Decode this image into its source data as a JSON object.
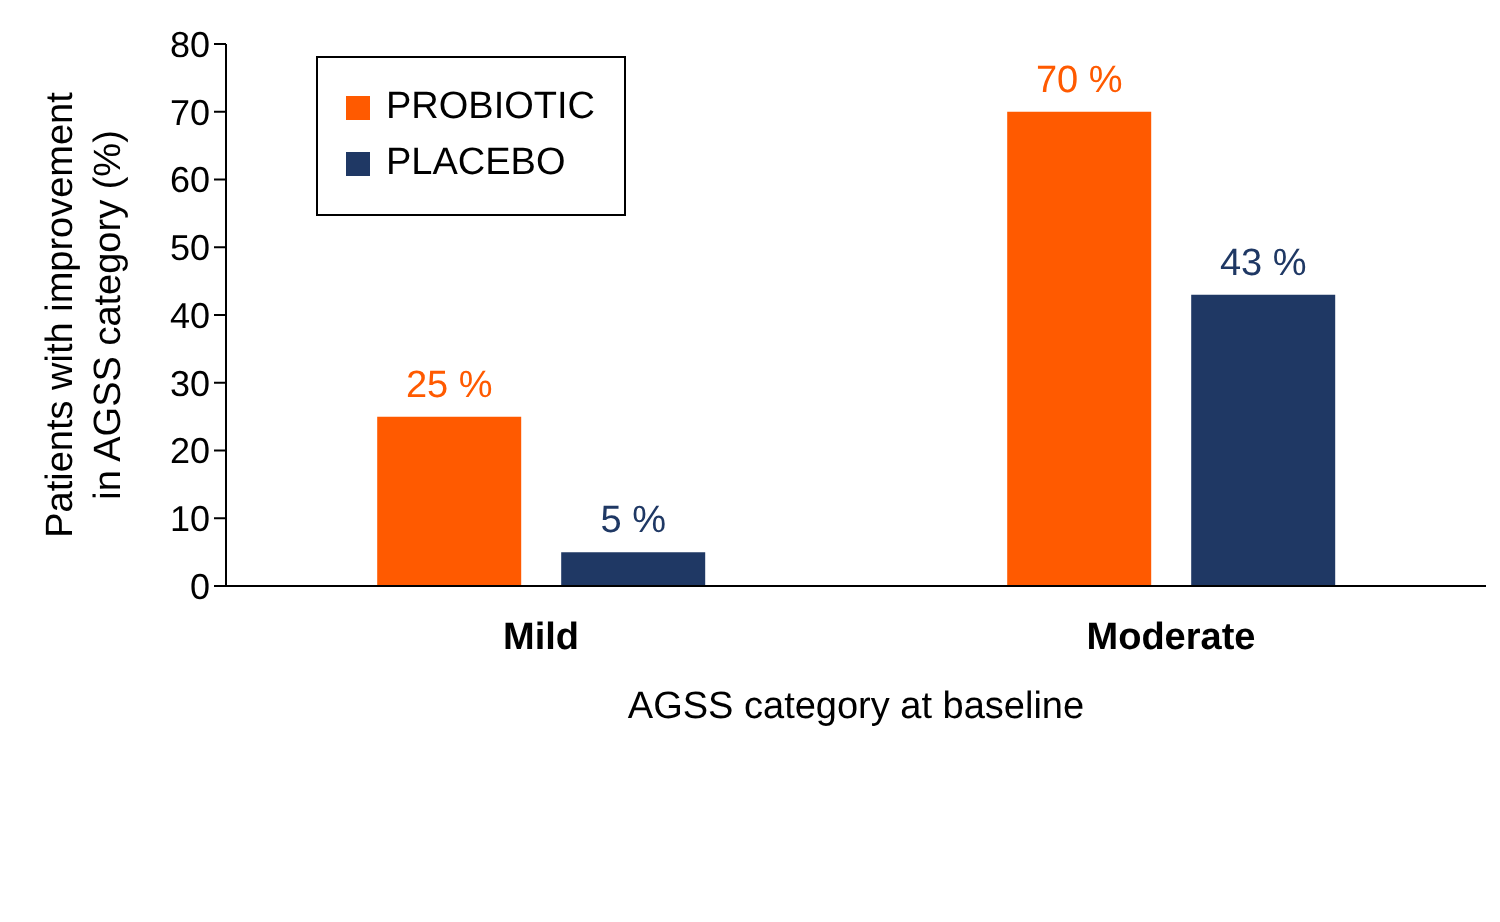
{
  "chart_data": {
    "type": "bar",
    "ylabel": "Patients with improvement in AGSS category (%)",
    "xlabel": "AGSS category at baseline",
    "categories": [
      "Mild",
      "Moderate"
    ],
    "series": [
      {
        "name": "PROBIOTIC",
        "color": "#ff5a00",
        "values": [
          25,
          70
        ],
        "value_labels": [
          "25 %",
          "70 %"
        ]
      },
      {
        "name": "PLACEBO",
        "color": "#1f3864",
        "values": [
          5,
          43
        ],
        "value_labels": [
          "5 %",
          "43 %"
        ]
      }
    ],
    "ylim": [
      0,
      80
    ],
    "yticks": [
      0,
      10,
      20,
      30,
      40,
      50,
      60,
      70,
      80
    ],
    "grid": false,
    "legend": "top left"
  }
}
